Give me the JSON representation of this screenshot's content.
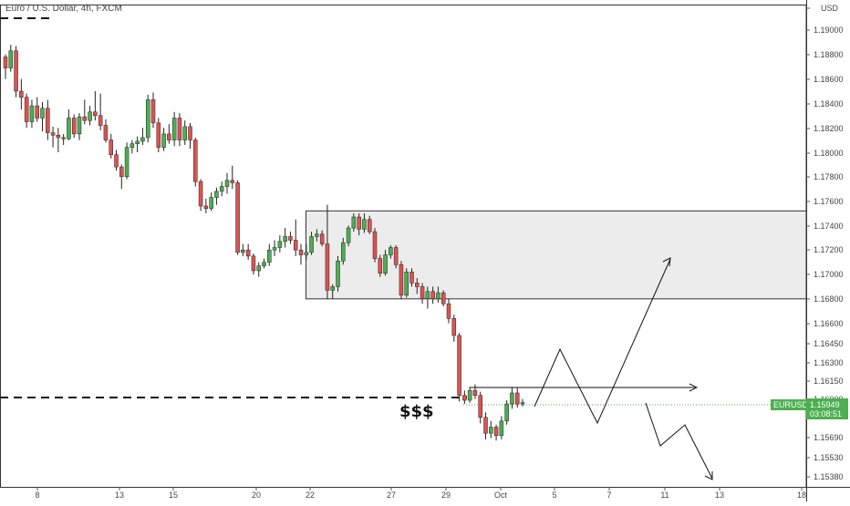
{
  "chart_data": {
    "type": "candlestick",
    "title": "Euro / U.S. Dollar, 4h, FXCM",
    "currency": "USD",
    "y_ticks": [
      "1.19000",
      "1.18800",
      "1.18600",
      "1.18400",
      "1.18200",
      "1.18000",
      "1.17800",
      "1.17600",
      "1.17400",
      "1.17200",
      "1.17000",
      "1.16800",
      "1.16600",
      "1.16450",
      "1.16300",
      "1.16150",
      "1.16000",
      "1.15690",
      "1.15530",
      "1.15380"
    ],
    "x_ticks": [
      "8",
      "13",
      "15",
      "20",
      "22",
      "27",
      "29",
      "Oct",
      "5",
      "7",
      "11",
      "13",
      "18"
    ],
    "ylim": [
      1.1536,
      1.1925
    ],
    "last_price": {
      "symbol": "EURUSD",
      "price": "1.15949",
      "countdown": "03:08:51",
      "value": 1.15949
    },
    "annotation": "$$$",
    "colors": {
      "up": "#4caf50",
      "down": "#e05252",
      "wick": "#222222",
      "badge": "#4caf50",
      "zone": "#e6e6e6"
    },
    "candles": [
      [
        1.1878,
        1.188,
        1.186,
        1.1869
      ],
      [
        1.1869,
        1.1888,
        1.1866,
        1.1883
      ],
      [
        1.1883,
        1.1887,
        1.1845,
        1.185
      ],
      [
        1.185,
        1.186,
        1.1835,
        1.1845
      ],
      [
        1.1845,
        1.1848,
        1.182,
        1.1825
      ],
      [
        1.1825,
        1.1843,
        1.182,
        1.1838
      ],
      [
        1.1838,
        1.1845,
        1.1825,
        1.1828
      ],
      [
        1.1828,
        1.1841,
        1.1817,
        1.1836
      ],
      [
        1.1836,
        1.1843,
        1.181,
        1.1816
      ],
      [
        1.1816,
        1.1821,
        1.1804,
        1.1814
      ],
      [
        1.1814,
        1.182,
        1.18,
        1.1812
      ],
      [
        1.1812,
        1.1815,
        1.1806,
        1.1811
      ],
      [
        1.1811,
        1.1835,
        1.181,
        1.1828
      ],
      [
        1.1828,
        1.1831,
        1.1812,
        1.1815
      ],
      [
        1.1815,
        1.1832,
        1.181,
        1.1829
      ],
      [
        1.1829,
        1.1843,
        1.1823,
        1.1826
      ],
      [
        1.1826,
        1.1838,
        1.1822,
        1.1833
      ],
      [
        1.1833,
        1.185,
        1.1826,
        1.183
      ],
      [
        1.183,
        1.1848,
        1.1818,
        1.1822
      ],
      [
        1.1822,
        1.1827,
        1.1808,
        1.181
      ],
      [
        1.181,
        1.1815,
        1.1795,
        1.1798
      ],
      [
        1.1798,
        1.1802,
        1.1785,
        1.1788
      ],
      [
        1.1788,
        1.179,
        1.177,
        1.178
      ],
      [
        1.178,
        1.1808,
        1.1778,
        1.1804
      ],
      [
        1.1804,
        1.181,
        1.1799,
        1.1807
      ],
      [
        1.1807,
        1.1813,
        1.18,
        1.1809
      ],
      [
        1.1809,
        1.182,
        1.1806,
        1.1812
      ],
      [
        1.1812,
        1.1847,
        1.1808,
        1.1843
      ],
      [
        1.1843,
        1.1849,
        1.182,
        1.1824
      ],
      [
        1.1824,
        1.1828,
        1.18,
        1.1804
      ],
      [
        1.1804,
        1.182,
        1.1801,
        1.1815
      ],
      [
        1.1815,
        1.1823,
        1.1807,
        1.181
      ],
      [
        1.181,
        1.1833,
        1.1805,
        1.1828
      ],
      [
        1.1828,
        1.1832,
        1.1805,
        1.181
      ],
      [
        1.181,
        1.1826,
        1.1806,
        1.1821
      ],
      [
        1.1821,
        1.1824,
        1.1803,
        1.181
      ],
      [
        1.181,
        1.1812,
        1.1772,
        1.1776
      ],
      [
        1.1776,
        1.1778,
        1.1752,
        1.1756
      ],
      [
        1.1756,
        1.1762,
        1.175,
        1.1754
      ],
      [
        1.1754,
        1.1767,
        1.1752,
        1.1763
      ],
      [
        1.1763,
        1.1771,
        1.1757,
        1.1768
      ],
      [
        1.1768,
        1.1776,
        1.1764,
        1.1772
      ],
      [
        1.1772,
        1.1783,
        1.1766,
        1.1777
      ],
      [
        1.1777,
        1.1789,
        1.177,
        1.1775
      ],
      [
        1.1775,
        1.1777,
        1.1716,
        1.1718
      ],
      [
        1.1718,
        1.1725,
        1.1715,
        1.172
      ],
      [
        1.172,
        1.1725,
        1.1712,
        1.1715
      ],
      [
        1.1715,
        1.1717,
        1.17,
        1.1703
      ],
      [
        1.1703,
        1.171,
        1.1698,
        1.1707
      ],
      [
        1.1707,
        1.1713,
        1.1705,
        1.171
      ],
      [
        1.171,
        1.1725,
        1.1707,
        1.172
      ],
      [
        1.172,
        1.1728,
        1.1715,
        1.1722
      ],
      [
        1.1722,
        1.1732,
        1.1718,
        1.1727
      ],
      [
        1.1727,
        1.1738,
        1.1722,
        1.1731
      ],
      [
        1.1731,
        1.1735,
        1.1725,
        1.1728
      ],
      [
        1.1728,
        1.1745,
        1.1715,
        1.172
      ],
      [
        1.172,
        1.1725,
        1.1708,
        1.1716
      ],
      [
        1.1716,
        1.1725,
        1.1712,
        1.1718
      ],
      [
        1.1718,
        1.1735,
        1.1716,
        1.1731
      ],
      [
        1.1731,
        1.1737,
        1.1727,
        1.1733
      ],
      [
        1.1733,
        1.1736,
        1.1723,
        1.1725
      ],
      [
        1.1725,
        1.1757,
        1.168,
        1.1687
      ],
      [
        1.1687,
        1.1692,
        1.168,
        1.169
      ],
      [
        1.169,
        1.1715,
        1.1686,
        1.1711
      ],
      [
        1.1711,
        1.173,
        1.1708,
        1.1726
      ],
      [
        1.1726,
        1.174,
        1.1723,
        1.1738
      ],
      [
        1.1738,
        1.175,
        1.1735,
        1.1747
      ],
      [
        1.1747,
        1.175,
        1.1732,
        1.1737
      ],
      [
        1.1737,
        1.175,
        1.1734,
        1.1745
      ],
      [
        1.1745,
        1.1748,
        1.1733,
        1.1735
      ],
      [
        1.1735,
        1.1738,
        1.171,
        1.1713
      ],
      [
        1.1713,
        1.1716,
        1.1698,
        1.1701
      ],
      [
        1.1701,
        1.172,
        1.1699,
        1.1716
      ],
      [
        1.1716,
        1.1724,
        1.1713,
        1.1722
      ],
      [
        1.1722,
        1.1724,
        1.1705,
        1.1708
      ],
      [
        1.1708,
        1.1711,
        1.168,
        1.1683
      ],
      [
        1.1683,
        1.1705,
        1.1681,
        1.1702
      ],
      [
        1.1702,
        1.1705,
        1.169,
        1.1693
      ],
      [
        1.1693,
        1.1697,
        1.1684,
        1.169
      ],
      [
        1.169,
        1.1693,
        1.1676,
        1.168
      ],
      [
        1.168,
        1.169,
        1.1672,
        1.1686
      ],
      [
        1.1686,
        1.169,
        1.1676,
        1.168
      ],
      [
        1.168,
        1.169,
        1.1677,
        1.1685
      ],
      [
        1.1685,
        1.1687,
        1.1674,
        1.1676
      ],
      [
        1.1676,
        1.168,
        1.166,
        1.1664
      ],
      [
        1.1664,
        1.1667,
        1.1645,
        1.165
      ],
      [
        1.165,
        1.1652,
        1.1596,
        1.1601
      ],
      [
        1.1601,
        1.1605,
        1.1594,
        1.1597
      ],
      [
        1.1597,
        1.1608,
        1.1595,
        1.1605
      ],
      [
        1.1605,
        1.161,
        1.1598,
        1.1601
      ],
      [
        1.1601,
        1.1604,
        1.1578,
        1.1583
      ],
      [
        1.1583,
        1.1587,
        1.1565,
        1.157
      ],
      [
        1.157,
        1.158,
        1.1566,
        1.1575
      ],
      [
        1.1575,
        1.1577,
        1.1564,
        1.1568
      ],
      [
        1.1568,
        1.1584,
        1.1565,
        1.158
      ],
      [
        1.158,
        1.1597,
        1.1577,
        1.1594
      ],
      [
        1.1594,
        1.1608,
        1.159,
        1.1603
      ],
      [
        1.1603,
        1.1607,
        1.1591,
        1.1594
      ],
      [
        1.1594,
        1.1598,
        1.1592,
        1.1595
      ]
    ],
    "projection_path": [
      [
        586,
        446
      ],
      [
        614,
        383
      ],
      [
        655,
        464
      ],
      [
        735,
        284
      ]
    ],
    "projection_path_2": [
      [
        708,
        442
      ],
      [
        724,
        489
      ],
      [
        751,
        466
      ],
      [
        781,
        525
      ]
    ],
    "liquidity_level": 1.1602,
    "target_level": 1.161,
    "zone": {
      "top": 1.1752,
      "bottom": 1.168
    }
  }
}
